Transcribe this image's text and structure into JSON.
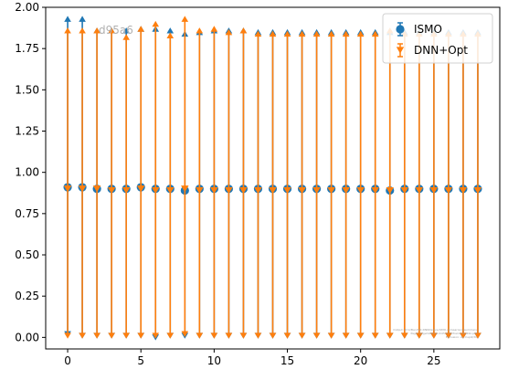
{
  "chart_data": {
    "type": "scatter",
    "xlim": [
      -1.5,
      29.5
    ],
    "ylim": [
      -0.07,
      2.0
    ],
    "x_ticks": [
      0,
      5,
      10,
      15,
      20,
      25
    ],
    "x_tick_labels": [
      "0",
      "5",
      "10",
      "15",
      "20",
      "25"
    ],
    "y_ticks": [
      0.0,
      0.25,
      0.5,
      0.75,
      1.0,
      1.25,
      1.5,
      1.75,
      2.0
    ],
    "y_tick_labels": [
      "0.00",
      "0.25",
      "0.50",
      "0.75",
      "1.00",
      "1.25",
      "1.50",
      "1.75",
      "2.00"
    ],
    "grid": false,
    "legend_position": "top-right",
    "x": [
      0,
      1,
      2,
      3,
      4,
      5,
      6,
      7,
      8,
      9,
      10,
      11,
      12,
      13,
      14,
      15,
      16,
      17,
      18,
      19,
      20,
      21,
      22,
      23,
      24,
      25,
      26,
      27,
      28
    ],
    "series": [
      {
        "name": "ISMO",
        "marker": "circle",
        "color": "#1f77b4",
        "values": [
          0.91,
          0.91,
          0.9,
          0.9,
          0.9,
          0.91,
          0.9,
          0.9,
          0.89,
          0.9,
          0.9,
          0.9,
          0.9,
          0.9,
          0.9,
          0.9,
          0.9,
          0.9,
          0.9,
          0.9,
          0.9,
          0.9,
          0.89,
          0.9,
          0.9,
          0.9,
          0.9,
          0.9,
          0.9
        ],
        "upper": [
          1.93,
          1.93,
          1.86,
          1.86,
          1.86,
          1.87,
          1.87,
          1.86,
          1.84,
          1.85,
          1.86,
          1.86,
          1.86,
          1.85,
          1.85,
          1.85,
          1.85,
          1.85,
          1.85,
          1.85,
          1.85,
          1.85,
          1.85,
          1.85,
          1.85,
          1.85,
          1.85,
          1.85,
          1.85
        ],
        "lower": [
          0.02,
          0.01,
          0.01,
          0.01,
          0.01,
          0.01,
          0.0,
          0.01,
          0.01,
          0.01,
          0.01,
          0.01,
          0.01,
          0.01,
          0.01,
          0.01,
          0.01,
          0.01,
          0.01,
          0.01,
          0.01,
          0.01,
          0.01,
          0.01,
          0.01,
          0.01,
          0.01,
          0.01,
          0.01
        ]
      },
      {
        "name": "DNN+Opt",
        "marker": "triangle-down",
        "color": "#ff7f0e",
        "values": [
          0.9,
          0.9,
          0.9,
          0.89,
          0.89,
          0.9,
          0.89,
          0.89,
          0.9,
          0.89,
          0.89,
          0.89,
          0.89,
          0.89,
          0.89,
          0.89,
          0.89,
          0.89,
          0.89,
          0.89,
          0.89,
          0.89,
          0.89,
          0.89,
          0.89,
          0.89,
          0.89,
          0.89,
          0.89
        ],
        "upper": [
          1.86,
          1.86,
          1.86,
          1.86,
          1.82,
          1.87,
          1.9,
          1.83,
          1.93,
          1.86,
          1.87,
          1.85,
          1.86,
          1.84,
          1.84,
          1.84,
          1.84,
          1.84,
          1.84,
          1.84,
          1.84,
          1.84,
          1.86,
          1.84,
          1.84,
          1.84,
          1.84,
          1.84,
          1.84
        ],
        "lower": [
          0.01,
          0.01,
          0.01,
          0.01,
          0.01,
          0.01,
          0.01,
          0.01,
          0.02,
          0.01,
          0.01,
          0.01,
          0.01,
          0.01,
          0.01,
          0.01,
          0.01,
          0.01,
          0.01,
          0.01,
          0.01,
          0.01,
          0.01,
          0.01,
          0.01,
          0.01,
          0.01,
          0.01,
          0.01
        ]
      }
    ],
    "watermark": "d95a6",
    "fine_print": [
      "Output: ErrorBar-Plot-DNNOpt-vs-ISMO-comparison-summary",
      "Page: grfgeh009-rw-Xl4%)1-f9/frame-multibl.pdf",
      "Exclusion: e+-hsplz/30"
    ]
  }
}
